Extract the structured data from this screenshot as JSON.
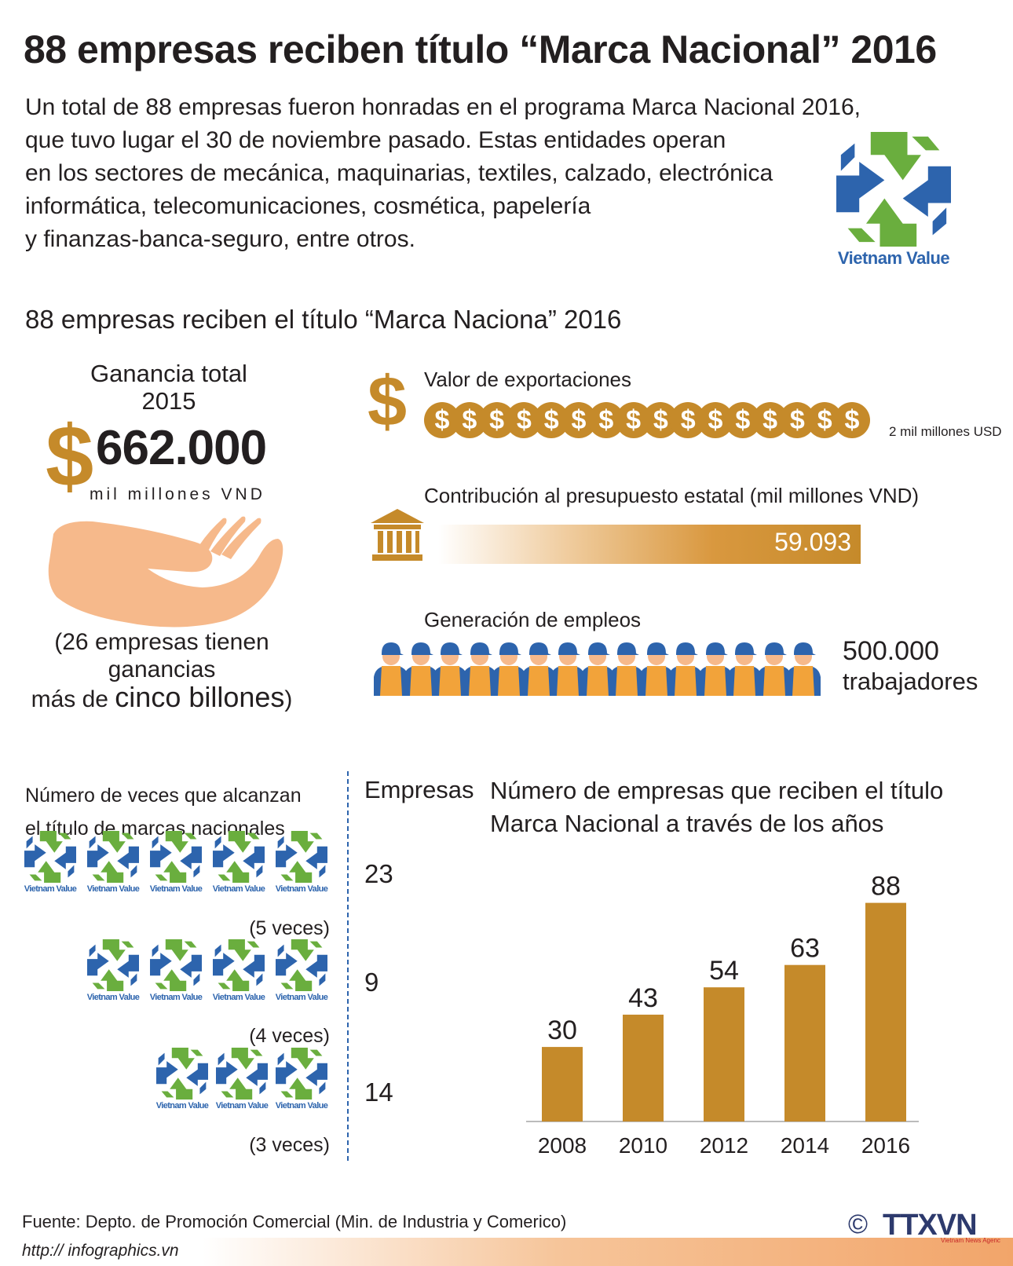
{
  "header": {
    "title": "88 empresas reciben título “Marca Nacional” 2016",
    "intro_lines": [
      "Un total de 88 empresas fueron honradas en el programa Marca Nacional 2016,",
      "que tuvo lugar el 30 de noviembre pasado. Estas entidades operan",
      "en los sectores de mecánica, maquinarias, textiles, calzado, electrónica",
      "informática, telecomunicaciones, cosmética, papelería",
      "y finanzas-banca-seguro, entre otros."
    ],
    "logo_brand": "Vietnam Value"
  },
  "subtitle": "88 empresas reciben el título “Marca Naciona” 2016",
  "profit": {
    "label_line1": "Ganancia total",
    "label_line2": "2015",
    "symbol": "$",
    "value": "662.000",
    "unit": "mil millones VND",
    "note_line1": "(26 empresas tienen",
    "note_line2": "ganancias",
    "note_line3_prefix": "más de ",
    "note_line3_emph": "cinco billones",
    "note_line3_suffix": ")"
  },
  "exports": {
    "label": "Valor de exportaciones",
    "symbol": "$",
    "coin_count": 16,
    "coin_symbol": "$",
    "unit": "2 mil millones USD"
  },
  "budget": {
    "label": "Contribución al presupuesto estatal (mil millones VND)",
    "value": "59.093"
  },
  "jobs": {
    "label": "Generación de empleos",
    "worker_icons": 15,
    "value": "500.000",
    "unit": "trabajadores"
  },
  "times": {
    "title_line1": "Número de veces que alcanzan",
    "title_line2": "el título de marcas nacionales",
    "logo_brand": "Vietnam Value",
    "rows": [
      {
        "label": "(5 veces)",
        "logos": 5,
        "count": "23"
      },
      {
        "label": "(4 veces)",
        "logos": 4,
        "count": "9"
      },
      {
        "label": "(3 veces)",
        "logos": 3,
        "count": "14"
      }
    ]
  },
  "chart_data": {
    "type": "bar",
    "title": "Número de empresas que reciben el título Marca Nacional a través de los años",
    "title_line1": "Número de empresas que reciben el título",
    "title_line2": "Marca Nacional a través de los años",
    "ylabel": "Empresas",
    "categories": [
      "2008",
      "2010",
      "2012",
      "2014",
      "2016"
    ],
    "values": [
      30,
      43,
      54,
      63,
      88
    ],
    "ylim": [
      0,
      110
    ],
    "bar_color": "#c58a2a",
    "grid": false
  },
  "footer": {
    "source": "Fuente: Depto. de Promoción Comercial (Min. de Industria y Comerico)",
    "url": "http:// infographics.vn",
    "copyright": "©",
    "agency": "TTXVN",
    "agency_sub": "Vietnam News Agency"
  },
  "colors": {
    "gold": "#c58a2a",
    "blue": "#2d64ad",
    "green": "#6aae3e",
    "text": "#231f20"
  }
}
